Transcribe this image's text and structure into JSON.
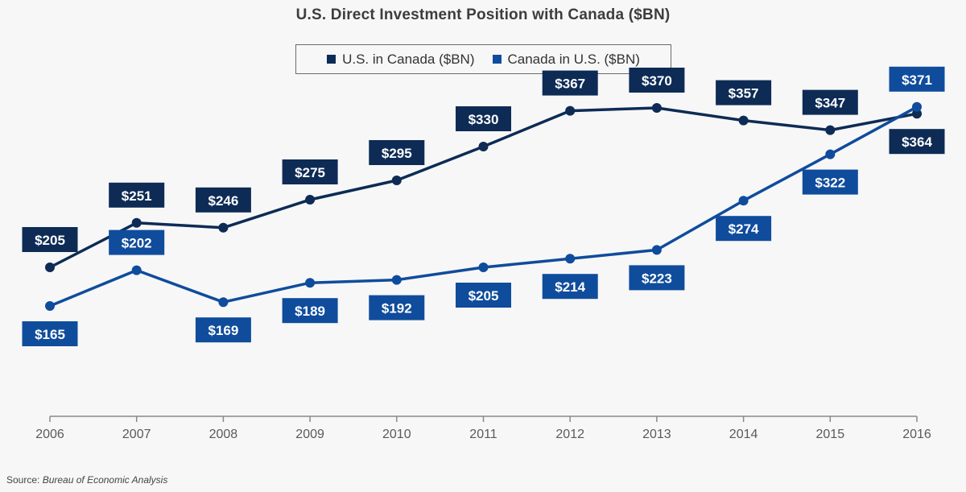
{
  "chart_data": {
    "type": "line",
    "title": "U.S. Direct Investment Position with Canada ($BN)",
    "x": [
      "2006",
      "2007",
      "2008",
      "2009",
      "2010",
      "2011",
      "2012",
      "2013",
      "2014",
      "2015",
      "2016"
    ],
    "series": [
      {
        "name": "U.S. in Canada ($BN)",
        "color": "#0d2b55",
        "values": [
          205,
          251,
          246,
          275,
          295,
          330,
          367,
          370,
          357,
          347,
          364
        ],
        "labels": [
          "$205",
          "$251",
          "$246",
          "$275",
          "$295",
          "$330",
          "$367",
          "$370",
          "$357",
          "$347",
          "$364"
        ]
      },
      {
        "name": "Canada in U.S. ($BN)",
        "color": "#0f4c9c",
        "values": [
          165,
          202,
          169,
          189,
          192,
          205,
          214,
          223,
          274,
          322,
          371
        ],
        "labels": [
          "$165",
          "$202",
          "$169",
          "$189",
          "$192",
          "$205",
          "$214",
          "$223",
          "$274",
          "$322",
          "$371"
        ]
      }
    ],
    "grid": false,
    "legend_position": "top-center"
  },
  "source": {
    "prefix": "Source: ",
    "name": "Bureau of Economic Analysis"
  }
}
